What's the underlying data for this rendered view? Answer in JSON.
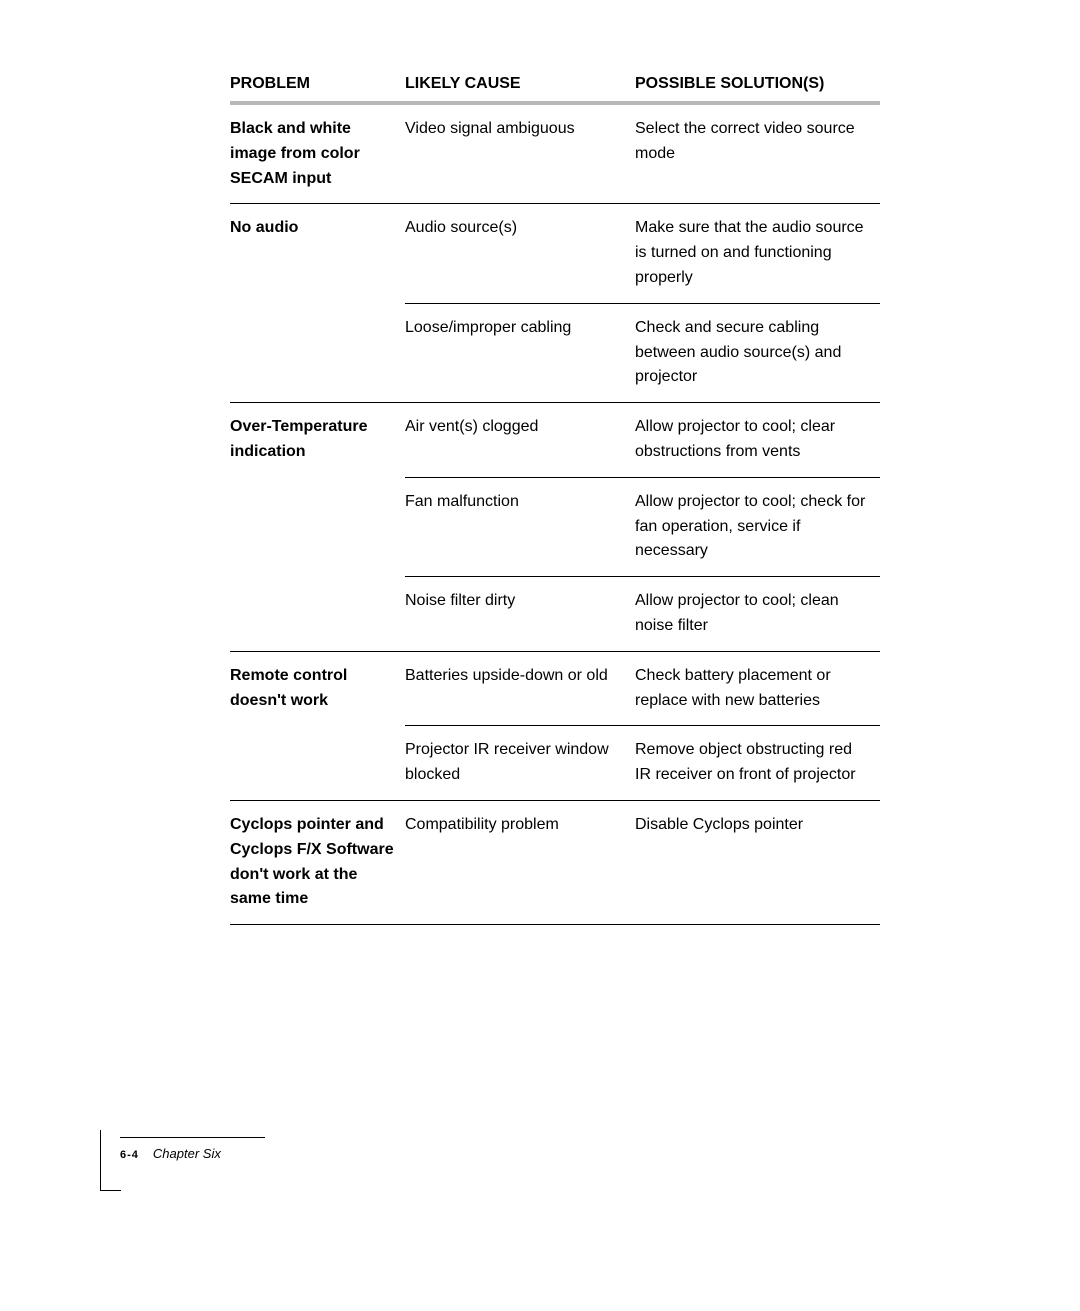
{
  "table": {
    "headers": {
      "problem": "PROBLEM",
      "cause": "LIKELY CAUSE",
      "solution": "POSSIBLE SOLUTION(S)"
    },
    "rows": [
      {
        "problem": "Black and white image from color SECAM input",
        "cause": "Video signal ambiguous",
        "solution": "Select the correct video source mode",
        "first": true
      },
      {
        "problem": "No audio",
        "cause": "Audio source(s)",
        "solution": "Make sure that the audio source is turned on and functioning properly",
        "first": true
      },
      {
        "problem": "",
        "cause": "Loose/improper cabling",
        "solution": "Check and secure cabling between audio source(s) and projector",
        "first": false
      },
      {
        "problem": "Over-Temperature indication",
        "cause": "Air vent(s) clogged",
        "solution": "Allow projector to cool; clear obstructions from vents",
        "first": true
      },
      {
        "problem": "",
        "cause": "Fan malfunction",
        "solution": "Allow projector to cool; check for fan operation, service if necessary",
        "first": false
      },
      {
        "problem": "",
        "cause": "Noise filter dirty",
        "solution": "Allow projector to cool; clean noise filter",
        "first": false
      },
      {
        "problem": "Remote control doesn't work",
        "cause": "Batteries upside-down or old",
        "solution": "Check battery placement or    replace with new batteries",
        "first": true
      },
      {
        "problem": "",
        "cause": "Projector IR receiver window blocked",
        "solution": "Remove object obstructing red IR receiver on front of projector",
        "first": false
      },
      {
        "problem": "Cyclops pointer and Cyclops F/X Software don't work at the same time",
        "cause": "Compatibility problem",
        "solution": "Disable Cyclops pointer",
        "first": true
      }
    ]
  },
  "footer": {
    "page": "6-4",
    "chapter": "Chapter Six"
  }
}
